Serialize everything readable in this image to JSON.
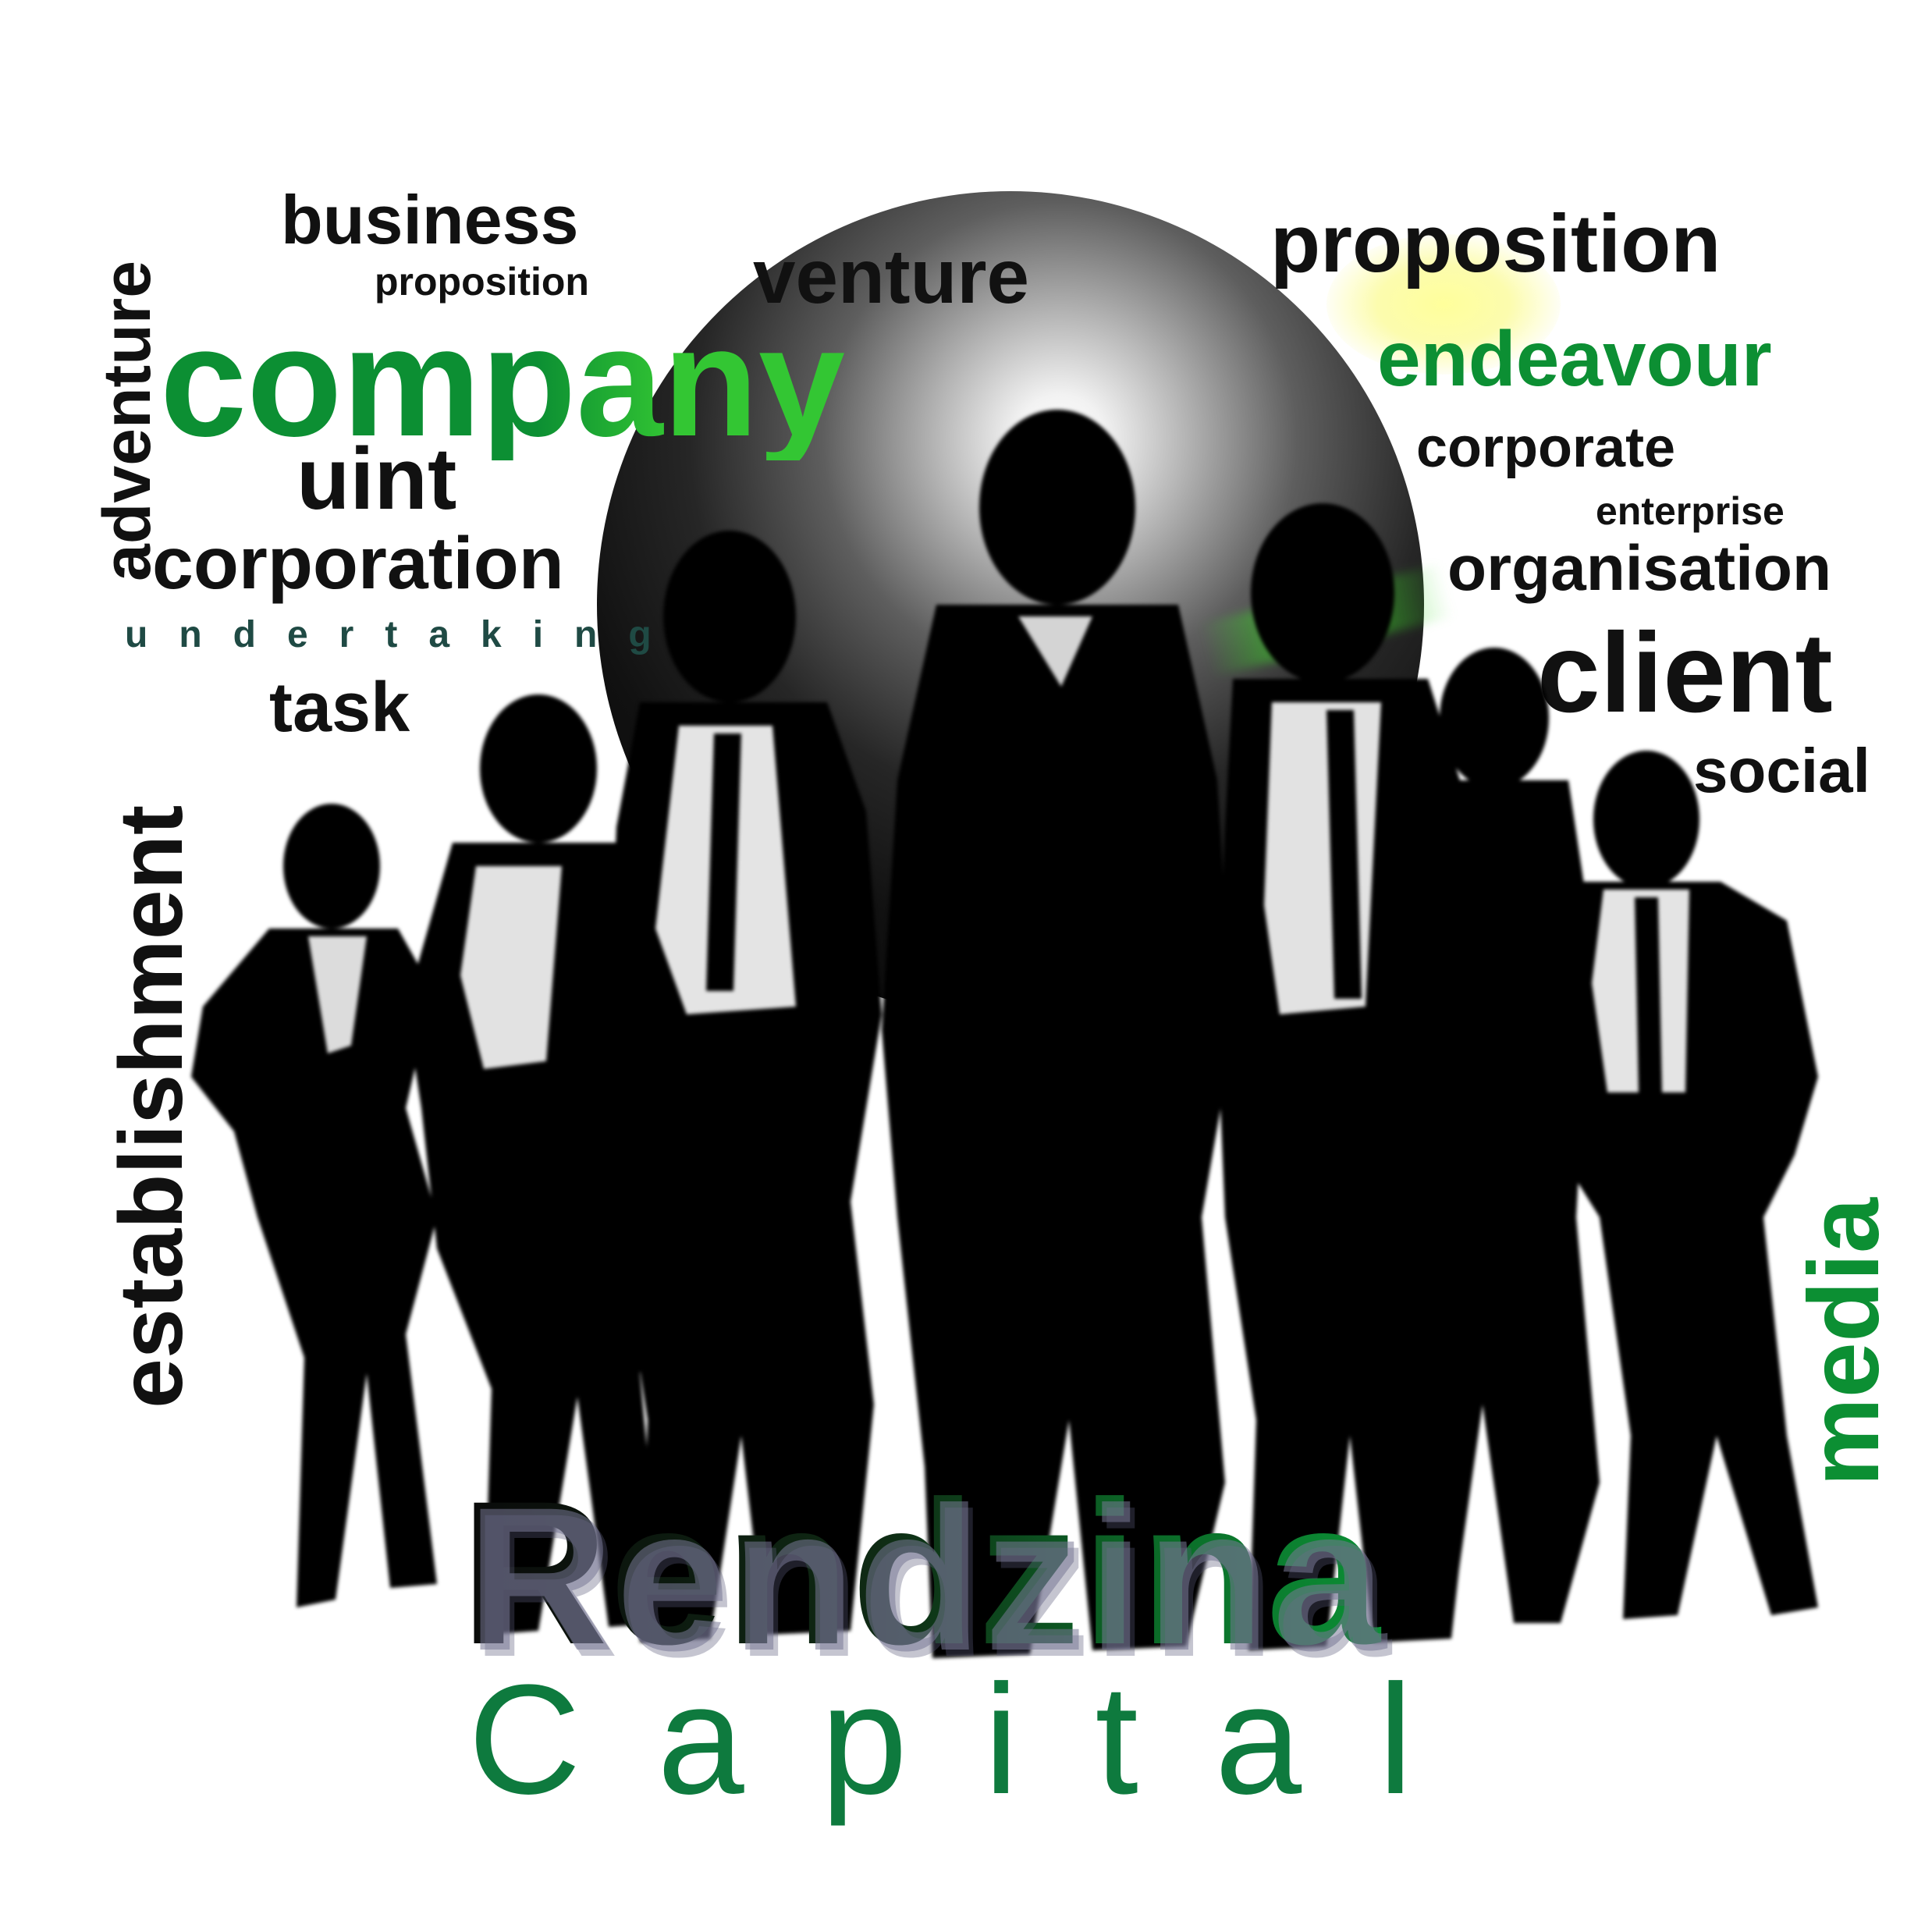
{
  "words": {
    "business": "business",
    "proposition_small": "proposition",
    "venture": "venture",
    "proposition_large": "proposition",
    "company": "company",
    "endeavour": "endeavour",
    "uint": "uint",
    "corporate": "corporate",
    "enterprise": "enterprise",
    "corporation": "corporation",
    "organisation": "organisation",
    "undertaking": "undertaking",
    "client": "client",
    "task": "task",
    "social": "social",
    "adventure": "adventure",
    "establishment": "establishment",
    "media": "media"
  },
  "brand": {
    "name": "Rendzina",
    "subtitle": "Capital"
  },
  "colors": {
    "black_text": "#111111",
    "green_text": "#0c8f33",
    "light_green_text": "#33c633",
    "undertaking_text": "#1f4a44",
    "subtitle_green": "#0e7a3e"
  }
}
